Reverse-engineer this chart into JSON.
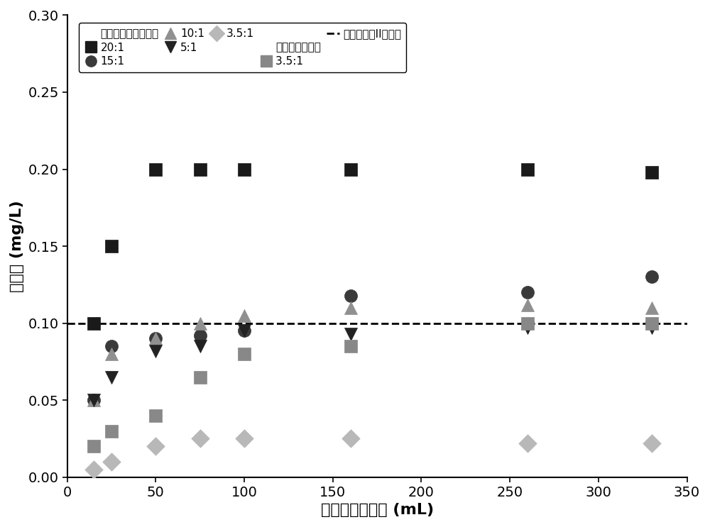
{
  "xlabel": "处理污水的体积 (mL)",
  "ylabel": "磷浓度 (mg/L)",
  "xlim": [
    0,
    350
  ],
  "ylim": [
    0.0,
    0.3
  ],
  "xticks": [
    0,
    50,
    100,
    150,
    200,
    250,
    300,
    350
  ],
  "xtick_labels": [
    "0",
    "50",
    "100",
    "150",
    "200",
    "250",
    "300",
    "350"
  ],
  "yticks": [
    0.0,
    0.05,
    0.1,
    0.15,
    0.2,
    0.25,
    0.3
  ],
  "ytick_labels": [
    "0.00",
    "0.05",
    "0.10",
    "0.15",
    "0.20",
    "0.25",
    "0.30"
  ],
  "dashed_line_y": 0.1,
  "series": [
    {
      "label": "20:1",
      "group": 1,
      "marker": "s",
      "color": "#1a1a1a",
      "markersize": 13,
      "x": [
        15,
        25,
        50,
        75,
        100,
        160,
        260,
        330
      ],
      "y": [
        0.1,
        0.15,
        0.2,
        0.2,
        0.2,
        0.2,
        0.2,
        0.198
      ]
    },
    {
      "label": "15:1",
      "group": 1,
      "marker": "o",
      "color": "#3a3a3a",
      "markersize": 13,
      "x": [
        15,
        25,
        50,
        75,
        100,
        160,
        260,
        330
      ],
      "y": [
        0.05,
        0.085,
        0.09,
        0.092,
        0.095,
        0.118,
        0.12,
        0.13
      ]
    },
    {
      "label": "10:1",
      "group": 1,
      "marker": "^",
      "color": "#909090",
      "markersize": 13,
      "x": [
        15,
        25,
        50,
        75,
        100,
        160,
        260,
        330
      ],
      "y": [
        0.05,
        0.08,
        0.09,
        0.1,
        0.105,
        0.11,
        0.112,
        0.11
      ]
    },
    {
      "label": "5:1",
      "group": 1,
      "marker": "v",
      "color": "#222222",
      "markersize": 13,
      "x": [
        15,
        25,
        50,
        75,
        100,
        160,
        260,
        330
      ],
      "y": [
        0.05,
        0.065,
        0.082,
        0.085,
        0.095,
        0.093,
        0.097,
        0.097
      ]
    },
    {
      "label": "3.5:1",
      "group": 1,
      "marker": "D",
      "color": "#b8b8b8",
      "markersize": 13,
      "x": [
        15,
        25,
        50,
        75,
        100,
        160,
        260,
        330
      ],
      "y": [
        0.005,
        0.01,
        0.02,
        0.025,
        0.025,
        0.025,
        0.022,
        0.022
      ]
    },
    {
      "label": "3.5:1",
      "group": 2,
      "marker": "s",
      "color": "#888888",
      "markersize": 13,
      "x": [
        15,
        25,
        50,
        75,
        100,
        160,
        260,
        330
      ],
      "y": [
        0.02,
        0.03,
        0.04,
        0.065,
        0.08,
        0.085,
        0.1,
        0.1
      ]
    }
  ],
  "legend_group1": "负载镧碳复合吸附剂",
  "legend_group2": "负载纯镧吸附剂",
  "legend_dashed": "中国地表水II类标准",
  "figure_facecolor": "#ffffff",
  "axes_facecolor": "#ffffff"
}
